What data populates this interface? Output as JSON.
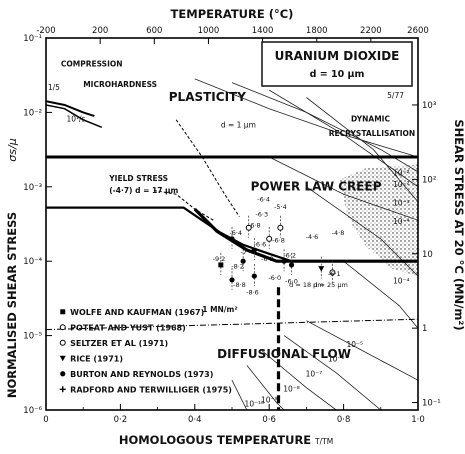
{
  "chart_data": {
    "type": "line",
    "title": "URANIUM DIOXIDE",
    "subtitle": "d = 10 μm",
    "code": "5/77",
    "xlabel": "HOMOLOGOUS TEMPERATURE",
    "xlabel_unit": "T/TM",
    "ylabel": "NORMALISED SHEAR STRESS",
    "ylabel_sym": "σs/μ",
    "top_axis_label": "TEMPERATURE (°C)",
    "right_axis_label": "SHEAR STRESS AT 20 °C (MN/m²)",
    "x_ticks": [
      "0",
      "0·2",
      "0·4",
      "0·6",
      "0·8",
      "1·0"
    ],
    "x_tick_values": [
      0,
      0.2,
      0.4,
      0.6,
      0.8,
      1.0
    ],
    "xlim": [
      0,
      1.0
    ],
    "ylim_log10": [
      -6,
      -1
    ],
    "y_ticks": [
      "10⁻¹",
      "10⁻²",
      "10⁻³",
      "10⁻⁴",
      "10⁻⁵",
      "10⁻⁶"
    ],
    "y_tick_values": [
      -1,
      -2,
      -3,
      -4,
      -5,
      -6
    ],
    "top_ticks": [
      "-200",
      "200",
      "600",
      "1000",
      "1400",
      "1800",
      "2200",
      "2600"
    ],
    "top_tick_values": [
      -200,
      200,
      600,
      1000,
      1400,
      1800,
      2200,
      2600
    ],
    "top_tick_positions": [
      0.0,
      0.1456,
      0.2911,
      0.4367,
      0.5822,
      0.7278,
      0.8733,
      1.0189
    ],
    "right_ticks": [
      "10³",
      "10²",
      "10",
      "1",
      "10⁻¹"
    ],
    "right_tick_values": [
      3,
      2,
      1,
      0,
      -1
    ],
    "right_tick_positions_log10": [
      -1.9,
      -2.9,
      -3.9,
      -4.9,
      -5.9
    ],
    "regions": {
      "plasticity": "PLASTICITY",
      "power_law": "POWER LAW CREEP",
      "diffusional": "DIFFUSIONAL FLOW",
      "dynamic_recryst": "DYNAMIC RECRYSTALLISATION",
      "compression": "COMPRESSION",
      "microhardness": "MICROHARDNESS",
      "yield_stress": "YIELD STRESS",
      "yield_stress_note": "(-4·7) d = 17 μm",
      "grain_note": "d = 1 μm",
      "mn_line": "1 MN/m²",
      "corner_a": "1/5",
      "corner_b": "10¹/s"
    },
    "boundaries": [
      {
        "name": "plasticity-power-law",
        "points": [
          [
            0,
            -2.6
          ],
          [
            1.0,
            -2.6
          ]
        ]
      },
      {
        "name": "yield-stress-line",
        "points": [
          [
            0,
            -3.28
          ],
          [
            0.37,
            -3.28
          ],
          [
            0.42,
            -3.45
          ],
          [
            0.47,
            -3.62
          ],
          [
            0.53,
            -3.78
          ],
          [
            0.6,
            -3.9
          ],
          [
            0.66,
            -4.0
          ],
          [
            1.0,
            -4.0
          ]
        ]
      },
      {
        "name": "power-law-diffusional",
        "points": [
          [
            0.4,
            -3.3
          ],
          [
            0.46,
            -3.6
          ],
          [
            0.54,
            -3.85
          ],
          [
            0.62,
            -4.0
          ],
          [
            0.7,
            -4.0
          ],
          [
            1.0,
            -4.0
          ]
        ]
      },
      {
        "name": "mn-line",
        "points": [
          [
            0,
            -4.92
          ],
          [
            1.0,
            -4.78
          ]
        ]
      }
    ],
    "strain_rate_contours": [
      {
        "label": "10⁻²",
        "points": [
          [
            0.4,
            -1.55
          ],
          [
            0.6,
            -1.95
          ],
          [
            0.8,
            -2.3
          ],
          [
            1.0,
            -2.6
          ]
        ]
      },
      {
        "label": "10⁻¹",
        "points": [
          [
            0.5,
            -1.6
          ],
          [
            0.7,
            -2.0
          ],
          [
            0.9,
            -2.5
          ],
          [
            1.0,
            -2.8
          ]
        ]
      },
      {
        "label": "1",
        "points": [
          [
            0.6,
            -1.7
          ],
          [
            0.8,
            -2.3
          ],
          [
            1.0,
            -3.0
          ]
        ]
      },
      {
        "label": "10",
        "points": [
          [
            0.7,
            -1.8
          ],
          [
            0.88,
            -2.5
          ],
          [
            1.0,
            -3.2
          ]
        ]
      },
      {
        "label": "10⁻³",
        "points": [
          [
            0.6,
            -2.6
          ],
          [
            0.8,
            -3.1
          ],
          [
            1.0,
            -3.45
          ]
        ]
      },
      {
        "label": "10⁻⁴",
        "points": [
          [
            0.7,
            -3.0
          ],
          [
            0.9,
            -3.7
          ],
          [
            1.0,
            -4.2
          ]
        ]
      },
      {
        "label": "10⁻⁵",
        "points": [
          [
            0.8,
            -4.0
          ],
          [
            0.95,
            -4.6
          ],
          [
            1.0,
            -4.9
          ]
        ]
      },
      {
        "label": "10⁻⁶",
        "points": [
          [
            0.7,
            -4.8
          ],
          [
            0.85,
            -5.2
          ],
          [
            1.0,
            -5.6
          ]
        ]
      },
      {
        "label": "10⁻⁷",
        "points": [
          [
            0.64,
            -5.0
          ],
          [
            0.78,
            -5.5
          ],
          [
            0.9,
            -6.0
          ]
        ]
      },
      {
        "label": "10⁻⁸",
        "points": [
          [
            0.58,
            -5.2
          ],
          [
            0.7,
            -5.7
          ],
          [
            0.78,
            -6.0
          ]
        ]
      },
      {
        "label": "10⁻⁹",
        "points": [
          [
            0.54,
            -5.4
          ],
          [
            0.62,
            -5.9
          ],
          [
            0.64,
            -6.0
          ]
        ]
      },
      {
        "label": "10⁻¹⁰",
        "points": [
          [
            0.5,
            -5.6
          ],
          [
            0.54,
            -6.0
          ]
        ]
      }
    ],
    "contour_labels": [
      {
        "text": "10⁻²",
        "x": 0.955,
        "y": -2.85
      },
      {
        "text": "10⁻²",
        "x": 0.955,
        "y": -3.0
      },
      {
        "text": "10⁻³",
        "x": 0.955,
        "y": -3.25
      },
      {
        "text": "10⁻⁴",
        "x": 0.955,
        "y": -3.5
      },
      {
        "text": "10⁻⁴",
        "x": 0.955,
        "y": -4.3
      },
      {
        "text": "10⁻⁵",
        "x": 0.83,
        "y": -5.15
      },
      {
        "text": "10⁻⁶",
        "x": 0.78,
        "y": -5.35
      },
      {
        "text": "10⁻⁷",
        "x": 0.72,
        "y": -5.55
      },
      {
        "text": "10⁻⁸",
        "x": 0.66,
        "y": -5.75
      },
      {
        "text": "10⁻⁹",
        "x": 0.6,
        "y": -5.9
      },
      {
        "text": "10⁻¹⁰",
        "x": 0.56,
        "y": -5.95
      }
    ],
    "data_labels": [
      {
        "text": "-6·4",
        "x": 0.51,
        "y": -3.65
      },
      {
        "text": "-7·4",
        "x": 0.54,
        "y": -3.9
      },
      {
        "text": "-6·3",
        "x": 0.58,
        "y": -3.4
      },
      {
        "text": "-5·4",
        "x": 0.63,
        "y": -3.3
      },
      {
        "text": "-6·6",
        "x": 0.575,
        "y": -3.8
      },
      {
        "text": "-6·9",
        "x": 0.595,
        "y": -4.0
      },
      {
        "text": "-6·8",
        "x": 0.625,
        "y": -3.75
      },
      {
        "text": "-6·2",
        "x": 0.655,
        "y": -3.95
      },
      {
        "text": "-6·0",
        "x": 0.615,
        "y": -4.25
      },
      {
        "text": "-4·6",
        "x": 0.715,
        "y": -3.7
      },
      {
        "text": "-4·8",
        "x": 0.785,
        "y": -3.65
      },
      {
        "text": "-6·1",
        "x": 0.775,
        "y": -4.2
      },
      {
        "text": "-9·2",
        "x": 0.465,
        "y": -4.0
      },
      {
        "text": "-8·8",
        "x": 0.52,
        "y": -4.35
      },
      {
        "text": "-8·2",
        "x": 0.515,
        "y": -4.1
      },
      {
        "text": "-8·6",
        "x": 0.555,
        "y": -4.45
      },
      {
        "text": "-6·0",
        "x": 0.66,
        "y": -4.3
      },
      {
        "text": "d = 18 μm",
        "x": 0.7,
        "y": -4.35
      },
      {
        "text": "d = 25 μm",
        "x": 0.765,
        "y": -4.35
      },
      {
        "text": "-6·8",
        "x": 0.56,
        "y": -3.55
      },
      {
        "text": "-6·4",
        "x": 0.585,
        "y": -3.2
      }
    ],
    "points": [
      {
        "x": 0.47,
        "y": -4.05,
        "marker": "square"
      },
      {
        "x": 0.5,
        "y": -4.25,
        "marker": "circle"
      },
      {
        "x": 0.53,
        "y": -4.0,
        "marker": "circle"
      },
      {
        "x": 0.56,
        "y": -3.85,
        "marker": "circle"
      },
      {
        "x": 0.56,
        "y": -4.2,
        "marker": "circle"
      },
      {
        "x": 0.6,
        "y": -3.7,
        "marker": "circle-open"
      },
      {
        "x": 0.63,
        "y": -3.55,
        "marker": "circle-open"
      },
      {
        "x": 0.64,
        "y": -4.0,
        "marker": "circle"
      },
      {
        "x": 0.66,
        "y": -4.05,
        "marker": "circle"
      },
      {
        "x": 0.74,
        "y": -4.1,
        "marker": "triangle"
      },
      {
        "x": 0.77,
        "y": -4.15,
        "marker": "circle-open"
      },
      {
        "x": 0.5,
        "y": -3.7,
        "marker": "circle"
      },
      {
        "x": 0.545,
        "y": -3.55,
        "marker": "circle-open"
      }
    ],
    "legend": [
      {
        "marker": "square",
        "label": "WOLFE AND KAUFMAN (1967)"
      },
      {
        "marker": "circle-open",
        "label": "POTEAT AND YUST (1968)"
      },
      {
        "marker": "circle-open",
        "label": "SELTZER ET AL (1971)"
      },
      {
        "marker": "triangle",
        "label": "RICE (1971)"
      },
      {
        "marker": "circle",
        "label": "BURTON AND REYNOLDS (1973)"
      },
      {
        "marker": "cross",
        "label": "RADFORD AND TERWILLIGER (1975)"
      }
    ],
    "legend_placement": "bottom-left"
  }
}
